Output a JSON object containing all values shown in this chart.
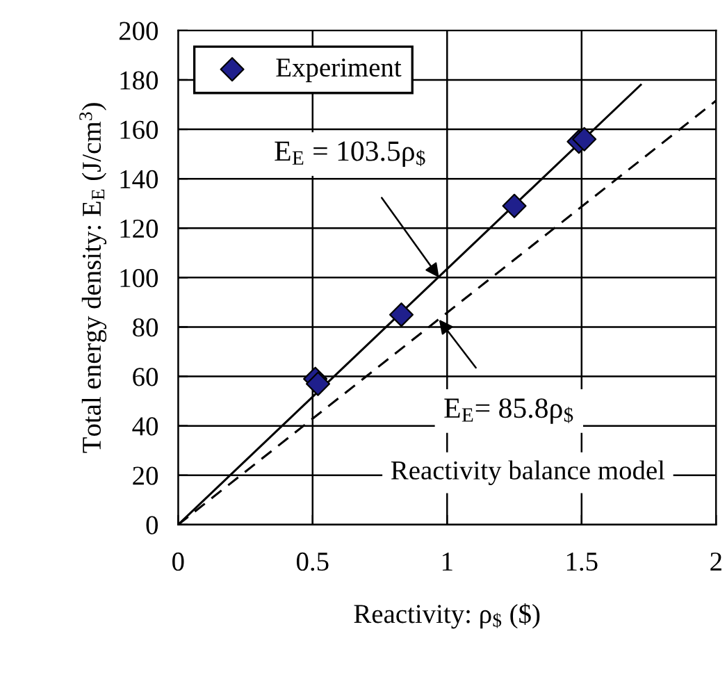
{
  "chart_data": {
    "type": "scatter",
    "xlabel": "Reactivity: ρ$_{$}$ ($)",
    "ylabel": "Total energy density: E$_{E}$ (J/cm$^{3}$)",
    "xlim": [
      0,
      2
    ],
    "ylim": [
      0,
      200
    ],
    "xticks": [
      0,
      0.5,
      1,
      1.5,
      2
    ],
    "yticks": [
      0,
      20,
      40,
      60,
      80,
      100,
      120,
      140,
      160,
      180,
      200
    ],
    "grid": true,
    "legend": "top left",
    "series": [
      {
        "name": "Experiment",
        "color": "#1f1f8c",
        "marker": "diamond",
        "x": [
          0.51,
          0.52,
          0.83,
          1.25,
          1.49,
          1.51
        ],
        "values": [
          59,
          57,
          85,
          129,
          155,
          156
        ]
      },
      {
        "type": "line",
        "color": "#000000",
        "line_style": "solid",
        "x": [
          0,
          1.72
        ],
        "values": [
          0,
          178
        ]
      },
      {
        "type": "line",
        "color": "#000000",
        "line_style": "dashed",
        "x": [
          0,
          2
        ],
        "values": [
          0,
          171.6
        ]
      }
    ],
    "annotations": [
      {
        "text": "E$_{E}$ = 103.5ρ$_{$}$",
        "x": 0.97,
        "y": 100
      },
      {
        "text": "E$_{E}$= 85.8ρ$_{$}$",
        "x": 0.97,
        "y": 83
      },
      "Reactivity balance model"
    ]
  }
}
